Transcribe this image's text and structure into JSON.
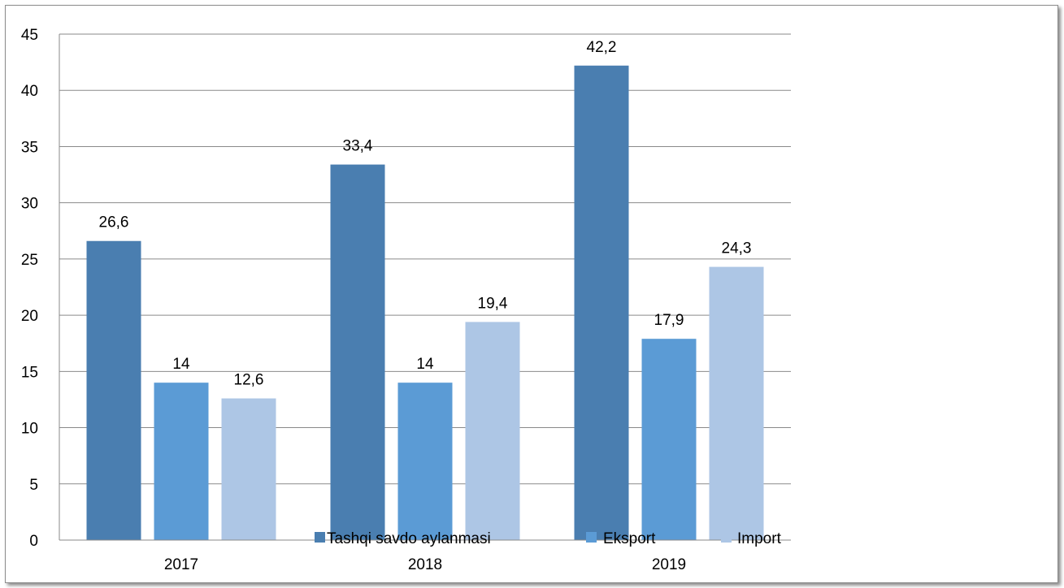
{
  "chart_data": {
    "type": "bar",
    "categories": [
      "2017",
      "2018",
      "2019"
    ],
    "series": [
      {
        "name": "Tashqi savdo aylanmasi",
        "values": [
          26.6,
          33.4,
          42.2
        ],
        "labels": [
          "26,6",
          "33,4",
          "42,2"
        ],
        "color": "#4a7eb0"
      },
      {
        "name": "Eksport",
        "values": [
          14,
          14,
          17.9
        ],
        "labels": [
          "14",
          "14",
          "17,9"
        ],
        "color": "#5b9bd5"
      },
      {
        "name": "Import",
        "values": [
          12.6,
          19.4,
          24.3
        ],
        "labels": [
          "12,6",
          "19,4",
          "24,3"
        ],
        "color": "#adc6e5"
      }
    ],
    "ylim": [
      0,
      45
    ],
    "yticks": [
      0,
      5,
      10,
      15,
      20,
      25,
      30,
      35,
      40,
      45
    ],
    "ytick_labels": [
      "0",
      "5",
      "10",
      "15",
      "20",
      "25",
      "30",
      "35",
      "40",
      "45"
    ],
    "title": "",
    "xlabel": "",
    "ylabel": "",
    "grid": true,
    "legend_position": "bottom-center-inside"
  }
}
